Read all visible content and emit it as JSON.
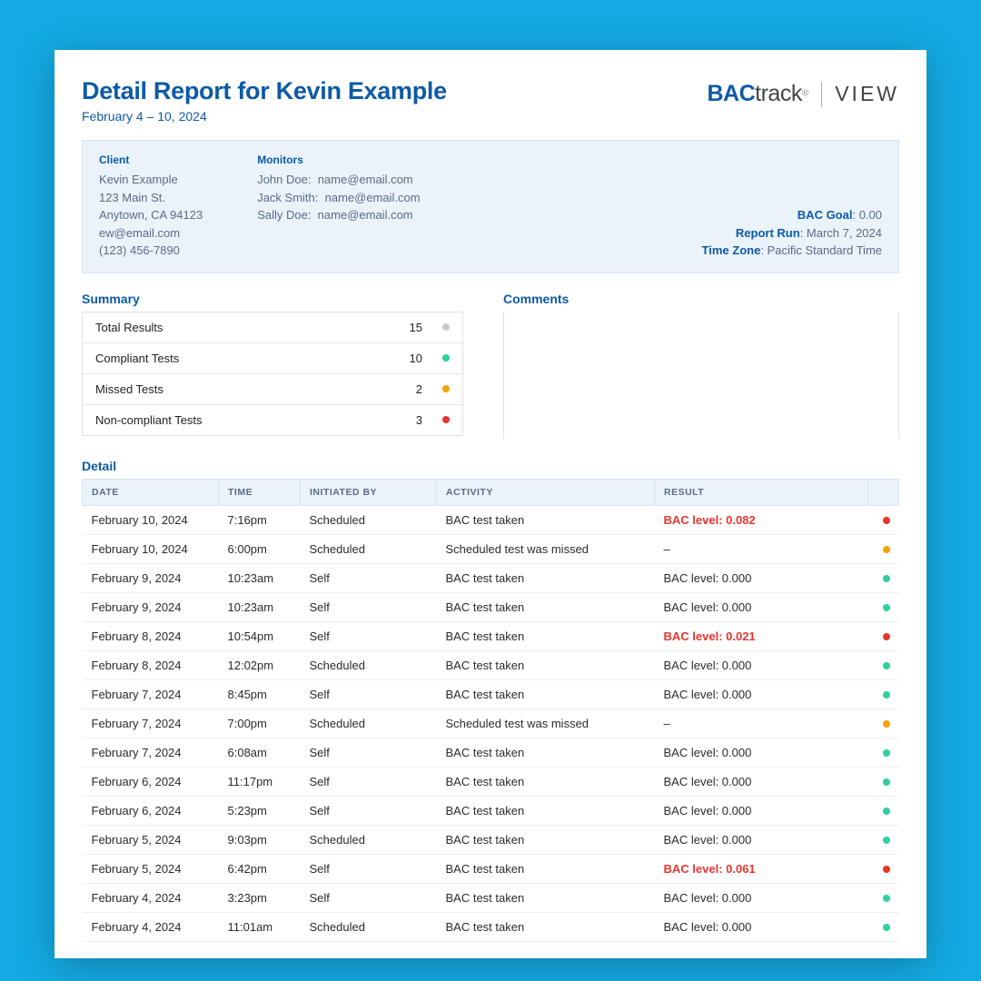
{
  "colors": {
    "page_bg": "#14aae3",
    "card_bg": "#ffffff",
    "primary": "#0c5aa6",
    "info_bg": "#eaf2fa",
    "info_border": "#d6e4f2",
    "text": "#2b2b2b",
    "muted": "#5b6b88",
    "border": "#e0e0e0",
    "dot_grey": "#c8c8c8",
    "dot_green": "#2ecfa0",
    "dot_orange": "#f7a400",
    "dot_red": "#e8352e",
    "result_red": "#e8352e"
  },
  "header": {
    "title": "Detail Report for Kevin Example",
    "date_range": "February 4 – 10, 2024",
    "logo_bac": "BAC",
    "logo_track": "track",
    "logo_view": "VIEW"
  },
  "info": {
    "client_label": "Client",
    "client_lines": [
      "Kevin Example",
      "123 Main St.",
      "Anytown, CA 94123",
      "ew@email.com",
      "(123) 456-7890"
    ],
    "monitors_label": "Monitors",
    "monitors_lines": [
      "John Doe:  name@email.com",
      "Jack Smith:  name@email.com",
      "Sally Doe:  name@email.com"
    ],
    "right": [
      {
        "key": "BAC Goal",
        "val": ": 0.00"
      },
      {
        "key": "Report Run",
        "val": ": March 7, 2024"
      },
      {
        "key": "Time Zone",
        "val": ": Pacific Standard Time"
      }
    ]
  },
  "summary": {
    "label": "Summary",
    "rows": [
      {
        "label": "Total Results",
        "value": "15",
        "dot_color": "#c8c8c8"
      },
      {
        "label": "Compliant Tests",
        "value": "10",
        "dot_color": "#2ecfa0"
      },
      {
        "label": "Missed Tests",
        "value": "2",
        "dot_color": "#f7a400"
      },
      {
        "label": "Non-compliant Tests",
        "value": "3",
        "dot_color": "#e8352e"
      }
    ]
  },
  "comments": {
    "label": "Comments"
  },
  "detail": {
    "label": "Detail",
    "columns": [
      "DATE",
      "TIME",
      "INITIATED BY",
      "ACTIVITY",
      "RESULT",
      ""
    ],
    "rows": [
      {
        "date": "February 10, 2024",
        "time": "7:16pm",
        "init": "Scheduled",
        "activity": "BAC test taken",
        "result": "BAC level: 0.082",
        "flag": true,
        "dot": "#e8352e"
      },
      {
        "date": "February 10, 2024",
        "time": "6:00pm",
        "init": "Scheduled",
        "activity": "Scheduled test was missed",
        "result": "–",
        "flag": false,
        "dot": "#f7a400"
      },
      {
        "date": "February 9, 2024",
        "time": "10:23am",
        "init": "Self",
        "activity": "BAC test taken",
        "result": "BAC level: 0.000",
        "flag": false,
        "dot": "#2ecfa0"
      },
      {
        "date": "February 9, 2024",
        "time": "10:23am",
        "init": "Self",
        "activity": "BAC test taken",
        "result": "BAC level: 0.000",
        "flag": false,
        "dot": "#2ecfa0"
      },
      {
        "date": "February 8, 2024",
        "time": "10:54pm",
        "init": "Self",
        "activity": "BAC test taken",
        "result": "BAC level: 0.021",
        "flag": true,
        "dot": "#e8352e"
      },
      {
        "date": "February 8, 2024",
        "time": "12:02pm",
        "init": "Scheduled",
        "activity": "BAC test taken",
        "result": "BAC level: 0.000",
        "flag": false,
        "dot": "#2ecfa0"
      },
      {
        "date": "February 7, 2024",
        "time": "8:45pm",
        "init": "Self",
        "activity": "BAC test taken",
        "result": "BAC level: 0.000",
        "flag": false,
        "dot": "#2ecfa0"
      },
      {
        "date": "February 7, 2024",
        "time": "7:00pm",
        "init": "Scheduled",
        "activity": "Scheduled test was missed",
        "result": "–",
        "flag": false,
        "dot": "#f7a400"
      },
      {
        "date": "February 7, 2024",
        "time": "6:08am",
        "init": "Self",
        "activity": "BAC test taken",
        "result": "BAC level: 0.000",
        "flag": false,
        "dot": "#2ecfa0"
      },
      {
        "date": "February 6, 2024",
        "time": "11:17pm",
        "init": "Self",
        "activity": "BAC test taken",
        "result": "BAC level: 0.000",
        "flag": false,
        "dot": "#2ecfa0"
      },
      {
        "date": "February 6, 2024",
        "time": "5:23pm",
        "init": "Self",
        "activity": "BAC test taken",
        "result": "BAC level: 0.000",
        "flag": false,
        "dot": "#2ecfa0"
      },
      {
        "date": "February 5, 2024",
        "time": "9:03pm",
        "init": "Scheduled",
        "activity": "BAC test taken",
        "result": "BAC level: 0.000",
        "flag": false,
        "dot": "#2ecfa0"
      },
      {
        "date": "February 5, 2024",
        "time": "6:42pm",
        "init": "Self",
        "activity": "BAC test taken",
        "result": "BAC level: 0.061",
        "flag": true,
        "dot": "#e8352e"
      },
      {
        "date": "February 4, 2024",
        "time": "3:23pm",
        "init": "Self",
        "activity": "BAC test taken",
        "result": "BAC level: 0.000",
        "flag": false,
        "dot": "#2ecfa0"
      },
      {
        "date": "February 4, 2024",
        "time": "11:01am",
        "init": "Scheduled",
        "activity": "BAC test taken",
        "result": "BAC level: 0.000",
        "flag": false,
        "dot": "#2ecfa0"
      }
    ]
  }
}
